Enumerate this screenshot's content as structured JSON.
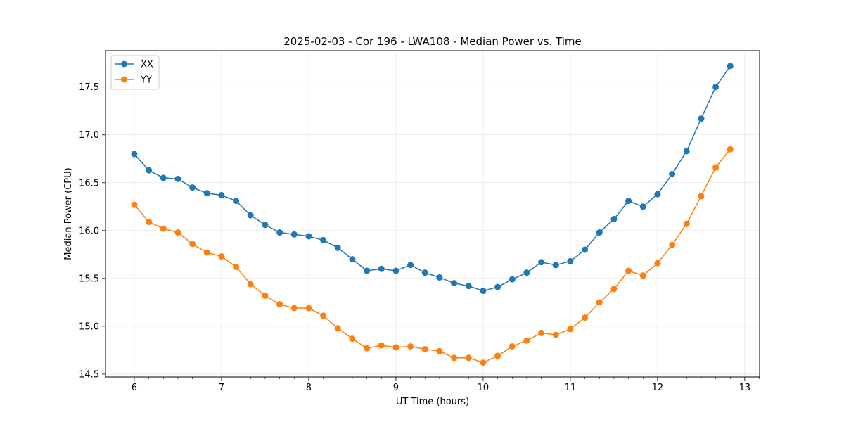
{
  "chart_data": {
    "type": "line",
    "title": "2025-02-03 - Cor 196 - LWA108 - Median Power vs. Time",
    "xlabel": "UT Time (hours)",
    "ylabel": "Median Power (CPU)",
    "xlim": [
      5.67,
      13.17
    ],
    "ylim": [
      14.47,
      17.88
    ],
    "xticks": [
      6,
      7,
      8,
      9,
      10,
      11,
      12,
      13
    ],
    "xtick_labels": [
      "6",
      "7",
      "8",
      "9",
      "10",
      "11",
      "12",
      "13"
    ],
    "yticks": [
      14.5,
      15.0,
      15.5,
      16.0,
      16.5,
      17.0,
      17.5
    ],
    "ytick_labels": [
      "14.5",
      "15.0",
      "15.5",
      "16.0",
      "16.5",
      "17.0",
      "17.5"
    ],
    "grid": true,
    "legend_position": "top-left",
    "x": [
      6.0,
      6.1667,
      6.3333,
      6.5,
      6.6667,
      6.8333,
      7.0,
      7.1667,
      7.3333,
      7.5,
      7.6667,
      7.8333,
      8.0,
      8.1667,
      8.3333,
      8.5,
      8.6667,
      8.8333,
      9.0,
      9.1667,
      9.3333,
      9.5,
      9.6667,
      9.8333,
      10.0,
      10.1667,
      10.3333,
      10.5,
      10.6667,
      10.8333,
      11.0,
      11.1667,
      11.3333,
      11.5,
      11.6667,
      11.8333,
      12.0,
      12.1667,
      12.3333,
      12.5,
      12.6667,
      12.8333
    ],
    "series": [
      {
        "name": "XX",
        "color": "#1f77b4",
        "values": [
          16.8,
          16.63,
          16.55,
          16.54,
          16.45,
          16.39,
          16.37,
          16.31,
          16.16,
          16.06,
          15.98,
          15.96,
          15.94,
          15.9,
          15.82,
          15.7,
          15.58,
          15.6,
          15.58,
          15.64,
          15.56,
          15.51,
          15.45,
          15.42,
          15.37,
          15.41,
          15.49,
          15.56,
          15.67,
          15.64,
          15.68,
          15.8,
          15.98,
          16.12,
          16.31,
          16.25,
          16.38,
          16.59,
          16.83,
          17.17,
          17.5,
          17.72
        ]
      },
      {
        "name": "YY",
        "color": "#ff7f0e",
        "values": [
          16.27,
          16.09,
          16.02,
          15.98,
          15.86,
          15.77,
          15.73,
          15.62,
          15.44,
          15.32,
          15.23,
          15.19,
          15.19,
          15.11,
          14.98,
          14.87,
          14.77,
          14.8,
          14.78,
          14.79,
          14.76,
          14.74,
          14.67,
          14.67,
          14.62,
          14.69,
          14.79,
          14.85,
          14.93,
          14.91,
          14.97,
          15.09,
          15.25,
          15.39,
          15.58,
          15.53,
          15.66,
          15.85,
          16.07,
          16.36,
          16.66,
          16.85
        ]
      }
    ]
  }
}
